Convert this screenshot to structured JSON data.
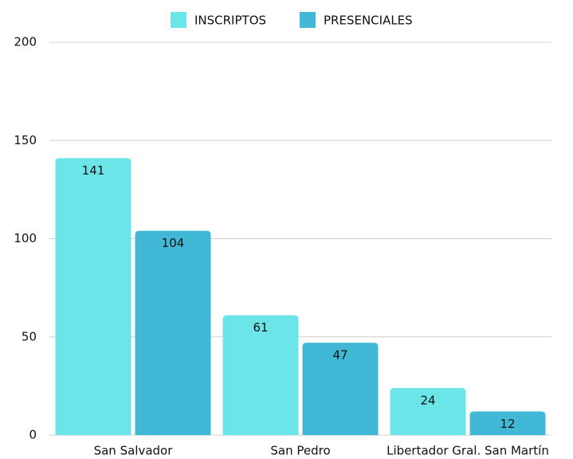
{
  "chart_data": {
    "type": "bar",
    "categories": [
      "San Salvador",
      "San Pedro",
      "Libertador Gral. San Martín"
    ],
    "series": [
      {
        "name": "INSCRIPTOS",
        "color": "#6ce5e8",
        "values": [
          141,
          61,
          24
        ]
      },
      {
        "name": "PRESENCIALES",
        "color": "#41b8d5",
        "values": [
          104,
          47,
          12
        ]
      }
    ],
    "ylim": [
      0,
      200
    ],
    "yticks": [
      0,
      50,
      100,
      150,
      200
    ],
    "grid": true,
    "legend": "top"
  }
}
